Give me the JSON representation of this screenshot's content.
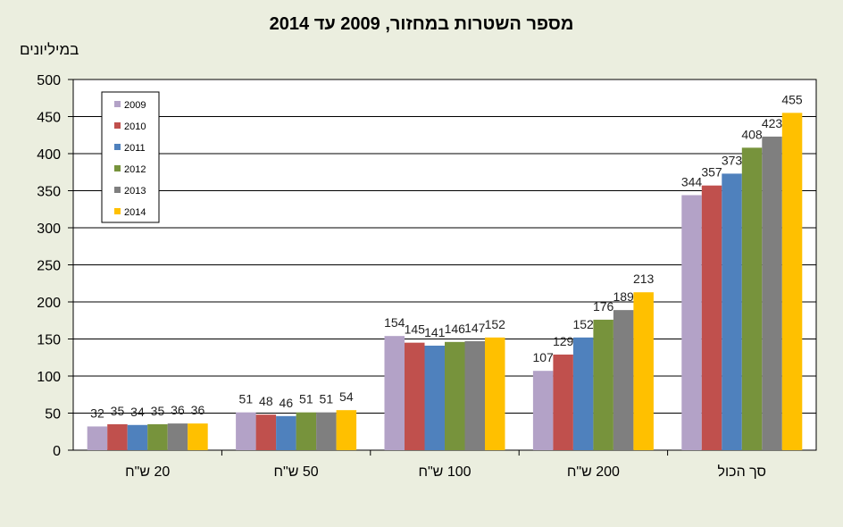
{
  "chart_data": {
    "type": "bar",
    "title": "מספר השטרות במחזור, 2009 עד 2014",
    "ylabel": "במיליונים",
    "xlabel": "",
    "categories": [
      "20 ש\"ח",
      "50 ש\"ח",
      "100 ש\"ח",
      "200 ש\"ח",
      "סך הכול"
    ],
    "ylim": [
      0,
      500
    ],
    "yticks": [
      0,
      50,
      100,
      150,
      200,
      250,
      300,
      350,
      400,
      450,
      500
    ],
    "grid": true,
    "legend_position": "top-left",
    "series": [
      {
        "name": "2009",
        "color": "#b3a2c7",
        "values": [
          32,
          51,
          154,
          107,
          344
        ]
      },
      {
        "name": "2010",
        "color": "#c0504d",
        "values": [
          35,
          48,
          145,
          129,
          357
        ]
      },
      {
        "name": "2011",
        "color": "#4f81bd",
        "values": [
          34,
          46,
          141,
          152,
          373
        ]
      },
      {
        "name": "2012",
        "color": "#77933c",
        "values": [
          35,
          51,
          146,
          176,
          408
        ]
      },
      {
        "name": "2013",
        "color": "#7f7f7f",
        "values": [
          36,
          51,
          147,
          189,
          423
        ]
      },
      {
        "name": "2014",
        "color": "#ffc000",
        "values": [
          36,
          54,
          152,
          213,
          455
        ]
      }
    ]
  }
}
